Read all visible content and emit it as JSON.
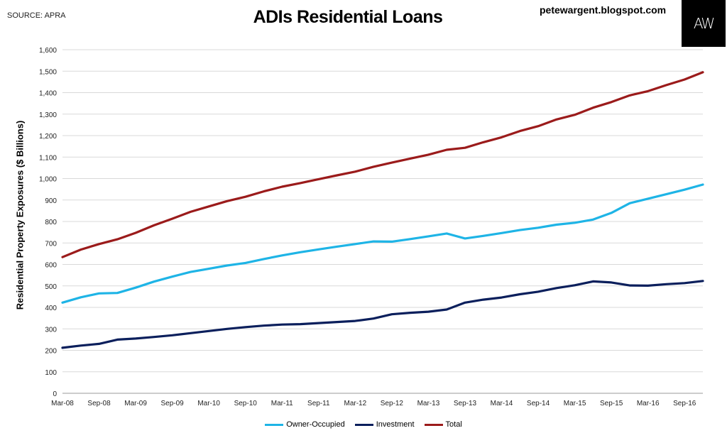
{
  "header": {
    "source": "SOURCE: APRA",
    "title": "ADIs Residential Loans",
    "blog": "petewargent.blogspot.com",
    "logo_text": "AW"
  },
  "chart_data": {
    "type": "line",
    "title": "ADIs Residential Loans",
    "xlabel": "",
    "ylabel": "Residential Property Exposures ($ Billions)",
    "ylim": [
      0,
      1600
    ],
    "yticks": [
      0,
      100,
      200,
      300,
      400,
      500,
      600,
      700,
      800,
      900,
      1000,
      1100,
      1200,
      1300,
      1400,
      1500,
      1600
    ],
    "ytick_labels": [
      "0",
      "100",
      "200",
      "300",
      "400",
      "500",
      "600",
      "700",
      "800",
      "900",
      "1,000",
      "1,100",
      "1,200",
      "1,300",
      "1,400",
      "1,500",
      "1,600"
    ],
    "grid": true,
    "legend_position": "bottom",
    "x": [
      "Mar-08",
      "Jun-08",
      "Sep-08",
      "Dec-08",
      "Mar-09",
      "Jun-09",
      "Sep-09",
      "Dec-09",
      "Mar-10",
      "Jun-10",
      "Sep-10",
      "Dec-10",
      "Mar-11",
      "Jun-11",
      "Sep-11",
      "Dec-11",
      "Mar-12",
      "Jun-12",
      "Sep-12",
      "Dec-12",
      "Mar-13",
      "Jun-13",
      "Sep-13",
      "Dec-13",
      "Mar-14",
      "Jun-14",
      "Sep-14",
      "Dec-14",
      "Mar-15",
      "Jun-15",
      "Sep-15",
      "Dec-15",
      "Mar-16",
      "Jun-16",
      "Sep-16",
      "Dec-16"
    ],
    "xtick_labels": [
      "Mar-08",
      "Sep-08",
      "Mar-09",
      "Sep-09",
      "Mar-10",
      "Sep-10",
      "Mar-11",
      "Sep-11",
      "Mar-12",
      "Sep-12",
      "Mar-13",
      "Sep-13",
      "Mar-14",
      "Sep-14",
      "Mar-15",
      "Sep-15",
      "Mar-16",
      "Sep-16"
    ],
    "series": [
      {
        "name": "Owner-Occupied",
        "color": "#1eb4e6",
        "values": [
          422,
          447,
          465,
          467,
          492,
          520,
          543,
          565,
          580,
          595,
          607,
          625,
          642,
          657,
          670,
          683,
          695,
          707,
          706,
          718,
          731,
          744,
          721,
          733,
          746,
          760,
          771,
          785,
          794,
          809,
          840,
          885,
          906,
          927,
          948,
          972
        ]
      },
      {
        "name": "Investment",
        "color": "#0b1f5c",
        "values": [
          212,
          222,
          230,
          250,
          255,
          262,
          270,
          280,
          290,
          300,
          308,
          315,
          320,
          322,
          327,
          332,
          337,
          348,
          368,
          375,
          380,
          390,
          422,
          436,
          446,
          461,
          473,
          490,
          503,
          521,
          516,
          502,
          501,
          508,
          513,
          523
        ]
      },
      {
        "name": "Total",
        "color": "#9b1b1b",
        "values": [
          634,
          669,
          695,
          717,
          747,
          782,
          813,
          845,
          870,
          895,
          915,
          940,
          962,
          979,
          997,
          1015,
          1032,
          1055,
          1074,
          1093,
          1111,
          1134,
          1143,
          1169,
          1192,
          1221,
          1244,
          1275,
          1297,
          1330,
          1356,
          1387,
          1407,
          1435,
          1461,
          1495
        ]
      }
    ]
  }
}
